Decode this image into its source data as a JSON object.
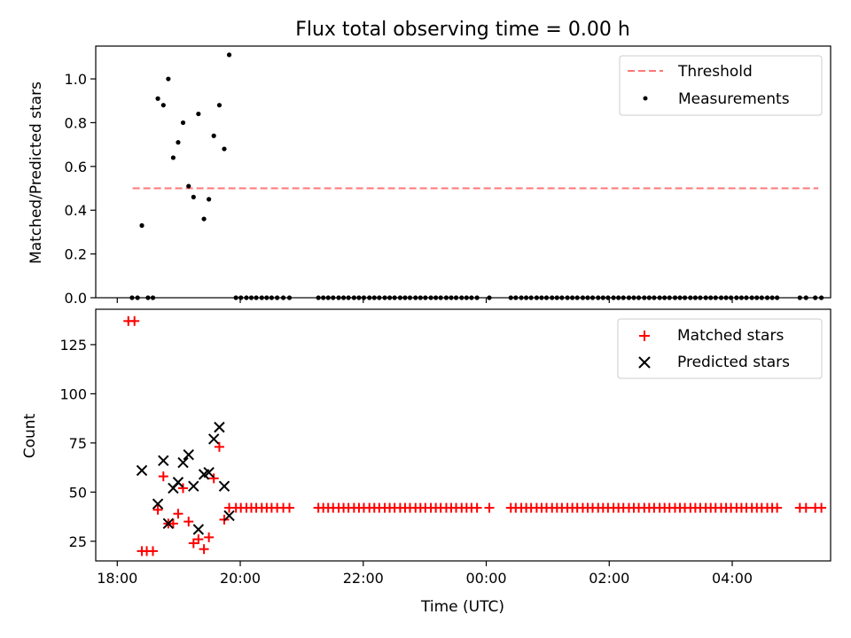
{
  "figure_title": "Flux total observing time = 0.00 h",
  "colors": {
    "threshold": "#ff7777",
    "measurement": "#000000",
    "matched": "#ff0000",
    "predicted": "#000000"
  },
  "x_axis": {
    "label": "Time (UTC)",
    "unit": "hours since 18:00 UTC",
    "range": [
      -0.35,
      11.6
    ],
    "ticks": [
      0,
      2,
      4,
      6,
      8,
      10
    ],
    "tick_labels": [
      "18:00",
      "20:00",
      "22:00",
      "00:00",
      "02:00",
      "04:00"
    ]
  },
  "chart_data": [
    {
      "type": "scatter",
      "panel": "top",
      "title": "Flux total observing time = 0.00 h",
      "xlabel": "",
      "ylabel": "Matched/Predicted stars",
      "xlim": [
        -0.35,
        11.6
      ],
      "ylim": [
        0,
        1.15
      ],
      "yticks": [
        0,
        0.2,
        0.4,
        0.6,
        0.8,
        1.0
      ],
      "ytick_labels": [
        "0.0",
        "0.2",
        "0.4",
        "0.6",
        "0.8",
        "1.0"
      ],
      "legend": {
        "position": "top-right",
        "entries": [
          "Threshold",
          "Measurements"
        ]
      },
      "threshold": {
        "name": "Threshold",
        "y": 0.5,
        "x_range": [
          0.25,
          11.4
        ]
      },
      "series": [
        {
          "name": "Measurements",
          "points": [
            [
              0.24,
              0
            ],
            [
              0.33,
              0
            ],
            [
              0.4,
              0.33
            ],
            [
              0.5,
              0
            ],
            [
              0.58,
              0
            ],
            [
              0.66,
              0.91
            ],
            [
              0.75,
              0.88
            ],
            [
              0.83,
              1.0
            ],
            [
              0.91,
              0.64
            ],
            [
              0.99,
              0.71
            ],
            [
              1.07,
              0.8
            ],
            [
              1.16,
              0.51
            ],
            [
              1.24,
              0.46
            ],
            [
              1.32,
              0.84
            ],
            [
              1.41,
              0.36
            ],
            [
              1.49,
              0.45
            ],
            [
              1.57,
              0.74
            ],
            [
              1.66,
              0.88
            ],
            [
              1.74,
              0.68
            ],
            [
              1.82,
              1.11
            ],
            [
              1.93,
              0
            ],
            [
              2.01,
              0
            ],
            [
              2.1,
              0
            ],
            [
              2.18,
              0
            ],
            [
              2.26,
              0
            ],
            [
              2.35,
              0
            ],
            [
              2.43,
              0
            ],
            [
              2.51,
              0
            ],
            [
              2.6,
              0
            ],
            [
              2.7,
              0
            ],
            [
              2.8,
              0
            ],
            [
              3.27,
              0
            ],
            [
              3.35,
              0
            ],
            [
              3.43,
              0
            ],
            [
              3.51,
              0
            ],
            [
              3.6,
              0
            ],
            [
              3.68,
              0
            ],
            [
              3.76,
              0
            ],
            [
              3.85,
              0
            ],
            [
              3.93,
              0
            ],
            [
              4.01,
              0
            ],
            [
              4.1,
              0
            ],
            [
              4.18,
              0
            ],
            [
              4.26,
              0
            ],
            [
              4.35,
              0
            ],
            [
              4.43,
              0
            ],
            [
              4.51,
              0
            ],
            [
              4.6,
              0
            ],
            [
              4.68,
              0
            ],
            [
              4.76,
              0
            ],
            [
              4.85,
              0
            ],
            [
              4.93,
              0
            ],
            [
              5.01,
              0
            ],
            [
              5.1,
              0
            ],
            [
              5.18,
              0
            ],
            [
              5.26,
              0
            ],
            [
              5.35,
              0
            ],
            [
              5.43,
              0
            ],
            [
              5.51,
              0
            ],
            [
              5.6,
              0
            ],
            [
              5.68,
              0
            ],
            [
              5.76,
              0
            ],
            [
              5.85,
              0
            ],
            [
              6.05,
              0
            ],
            [
              6.4,
              0
            ],
            [
              6.48,
              0
            ],
            [
              6.57,
              0
            ],
            [
              6.65,
              0
            ],
            [
              6.73,
              0
            ],
            [
              6.82,
              0
            ],
            [
              6.9,
              0
            ],
            [
              6.98,
              0
            ],
            [
              7.07,
              0
            ],
            [
              7.15,
              0
            ],
            [
              7.23,
              0
            ],
            [
              7.32,
              0
            ],
            [
              7.4,
              0
            ],
            [
              7.48,
              0
            ],
            [
              7.57,
              0
            ],
            [
              7.65,
              0
            ],
            [
              7.73,
              0
            ],
            [
              7.82,
              0
            ],
            [
              7.9,
              0
            ],
            [
              7.98,
              0
            ],
            [
              8.07,
              0
            ],
            [
              8.15,
              0
            ],
            [
              8.23,
              0
            ],
            [
              8.32,
              0
            ],
            [
              8.4,
              0
            ],
            [
              8.48,
              0
            ],
            [
              8.57,
              0
            ],
            [
              8.65,
              0
            ],
            [
              8.73,
              0
            ],
            [
              8.82,
              0
            ],
            [
              8.9,
              0
            ],
            [
              8.98,
              0
            ],
            [
              9.07,
              0
            ],
            [
              9.15,
              0
            ],
            [
              9.23,
              0
            ],
            [
              9.32,
              0
            ],
            [
              9.4,
              0
            ],
            [
              9.48,
              0
            ],
            [
              9.57,
              0
            ],
            [
              9.65,
              0
            ],
            [
              9.73,
              0
            ],
            [
              9.82,
              0
            ],
            [
              9.9,
              0
            ],
            [
              9.98,
              0
            ],
            [
              10.07,
              0
            ],
            [
              10.15,
              0
            ],
            [
              10.23,
              0
            ],
            [
              10.32,
              0
            ],
            [
              10.4,
              0
            ],
            [
              10.48,
              0
            ],
            [
              10.57,
              0
            ],
            [
              10.65,
              0
            ],
            [
              10.73,
              0
            ],
            [
              11.1,
              0
            ],
            [
              11.2,
              0
            ],
            [
              11.35,
              0
            ],
            [
              11.45,
              0
            ]
          ]
        }
      ]
    },
    {
      "type": "scatter",
      "panel": "bottom",
      "title": "",
      "xlabel": "Time (UTC)",
      "ylabel": "Count",
      "xlim": [
        -0.35,
        11.6
      ],
      "ylim": [
        15,
        143
      ],
      "yticks": [
        25,
        50,
        75,
        100,
        125
      ],
      "ytick_labels": [
        "25",
        "50",
        "75",
        "100",
        "125"
      ],
      "legend": {
        "position": "top-right",
        "entries": [
          "Matched stars",
          "Predicted stars"
        ]
      },
      "series": [
        {
          "name": "Matched stars",
          "marker": "+",
          "points": [
            [
              0.18,
              137
            ],
            [
              0.28,
              137
            ],
            [
              0.4,
              20
            ],
            [
              0.48,
              20
            ],
            [
              0.58,
              20
            ],
            [
              0.66,
              41
            ],
            [
              0.75,
              58
            ],
            [
              0.83,
              34
            ],
            [
              0.91,
              34
            ],
            [
              0.99,
              39
            ],
            [
              1.07,
              52
            ],
            [
              1.16,
              35
            ],
            [
              1.24,
              24
            ],
            [
              1.32,
              26
            ],
            [
              1.41,
              21
            ],
            [
              1.49,
              27
            ],
            [
              1.57,
              57
            ],
            [
              1.66,
              73
            ],
            [
              1.74,
              36
            ],
            [
              1.82,
              42
            ],
            [
              1.93,
              42
            ],
            [
              2.01,
              42
            ],
            [
              2.1,
              42
            ],
            [
              2.18,
              42
            ],
            [
              2.26,
              42
            ],
            [
              2.35,
              42
            ],
            [
              2.43,
              42
            ],
            [
              2.51,
              42
            ],
            [
              2.6,
              42
            ],
            [
              2.7,
              42
            ],
            [
              2.8,
              42
            ],
            [
              3.27,
              42
            ],
            [
              3.35,
              42
            ],
            [
              3.43,
              42
            ],
            [
              3.51,
              42
            ],
            [
              3.6,
              42
            ],
            [
              3.68,
              42
            ],
            [
              3.76,
              42
            ],
            [
              3.85,
              42
            ],
            [
              3.93,
              42
            ],
            [
              4.01,
              42
            ],
            [
              4.1,
              42
            ],
            [
              4.18,
              42
            ],
            [
              4.26,
              42
            ],
            [
              4.35,
              42
            ],
            [
              4.43,
              42
            ],
            [
              4.51,
              42
            ],
            [
              4.6,
              42
            ],
            [
              4.68,
              42
            ],
            [
              4.76,
              42
            ],
            [
              4.85,
              42
            ],
            [
              4.93,
              42
            ],
            [
              5.01,
              42
            ],
            [
              5.1,
              42
            ],
            [
              5.18,
              42
            ],
            [
              5.26,
              42
            ],
            [
              5.35,
              42
            ],
            [
              5.43,
              42
            ],
            [
              5.51,
              42
            ],
            [
              5.6,
              42
            ],
            [
              5.68,
              42
            ],
            [
              5.76,
              42
            ],
            [
              5.85,
              42
            ],
            [
              6.05,
              42
            ],
            [
              6.4,
              42
            ],
            [
              6.48,
              42
            ],
            [
              6.57,
              42
            ],
            [
              6.65,
              42
            ],
            [
              6.73,
              42
            ],
            [
              6.82,
              42
            ],
            [
              6.9,
              42
            ],
            [
              6.98,
              42
            ],
            [
              7.07,
              42
            ],
            [
              7.15,
              42
            ],
            [
              7.23,
              42
            ],
            [
              7.32,
              42
            ],
            [
              7.4,
              42
            ],
            [
              7.48,
              42
            ],
            [
              7.57,
              42
            ],
            [
              7.65,
              42
            ],
            [
              7.73,
              42
            ],
            [
              7.82,
              42
            ],
            [
              7.9,
              42
            ],
            [
              7.98,
              42
            ],
            [
              8.07,
              42
            ],
            [
              8.15,
              42
            ],
            [
              8.23,
              42
            ],
            [
              8.32,
              42
            ],
            [
              8.4,
              42
            ],
            [
              8.48,
              42
            ],
            [
              8.57,
              42
            ],
            [
              8.65,
              42
            ],
            [
              8.73,
              42
            ],
            [
              8.82,
              42
            ],
            [
              8.9,
              42
            ],
            [
              8.98,
              42
            ],
            [
              9.07,
              42
            ],
            [
              9.15,
              42
            ],
            [
              9.23,
              42
            ],
            [
              9.32,
              42
            ],
            [
              9.4,
              42
            ],
            [
              9.48,
              42
            ],
            [
              9.57,
              42
            ],
            [
              9.65,
              42
            ],
            [
              9.73,
              42
            ],
            [
              9.82,
              42
            ],
            [
              9.9,
              42
            ],
            [
              9.98,
              42
            ],
            [
              10.07,
              42
            ],
            [
              10.15,
              42
            ],
            [
              10.23,
              42
            ],
            [
              10.32,
              42
            ],
            [
              10.4,
              42
            ],
            [
              10.48,
              42
            ],
            [
              10.57,
              42
            ],
            [
              10.65,
              42
            ],
            [
              10.73,
              42
            ],
            [
              11.1,
              42
            ],
            [
              11.2,
              42
            ],
            [
              11.35,
              42
            ],
            [
              11.45,
              42
            ]
          ]
        },
        {
          "name": "Predicted stars",
          "marker": "x",
          "points": [
            [
              0.4,
              61
            ],
            [
              0.66,
              44
            ],
            [
              0.75,
              66
            ],
            [
              0.83,
              34
            ],
            [
              0.91,
              52
            ],
            [
              0.99,
              55
            ],
            [
              1.07,
              65
            ],
            [
              1.16,
              69
            ],
            [
              1.24,
              53
            ],
            [
              1.32,
              31
            ],
            [
              1.41,
              59
            ],
            [
              1.49,
              60
            ],
            [
              1.57,
              77
            ],
            [
              1.66,
              83
            ],
            [
              1.74,
              53
            ],
            [
              1.82,
              38
            ]
          ]
        }
      ]
    }
  ]
}
